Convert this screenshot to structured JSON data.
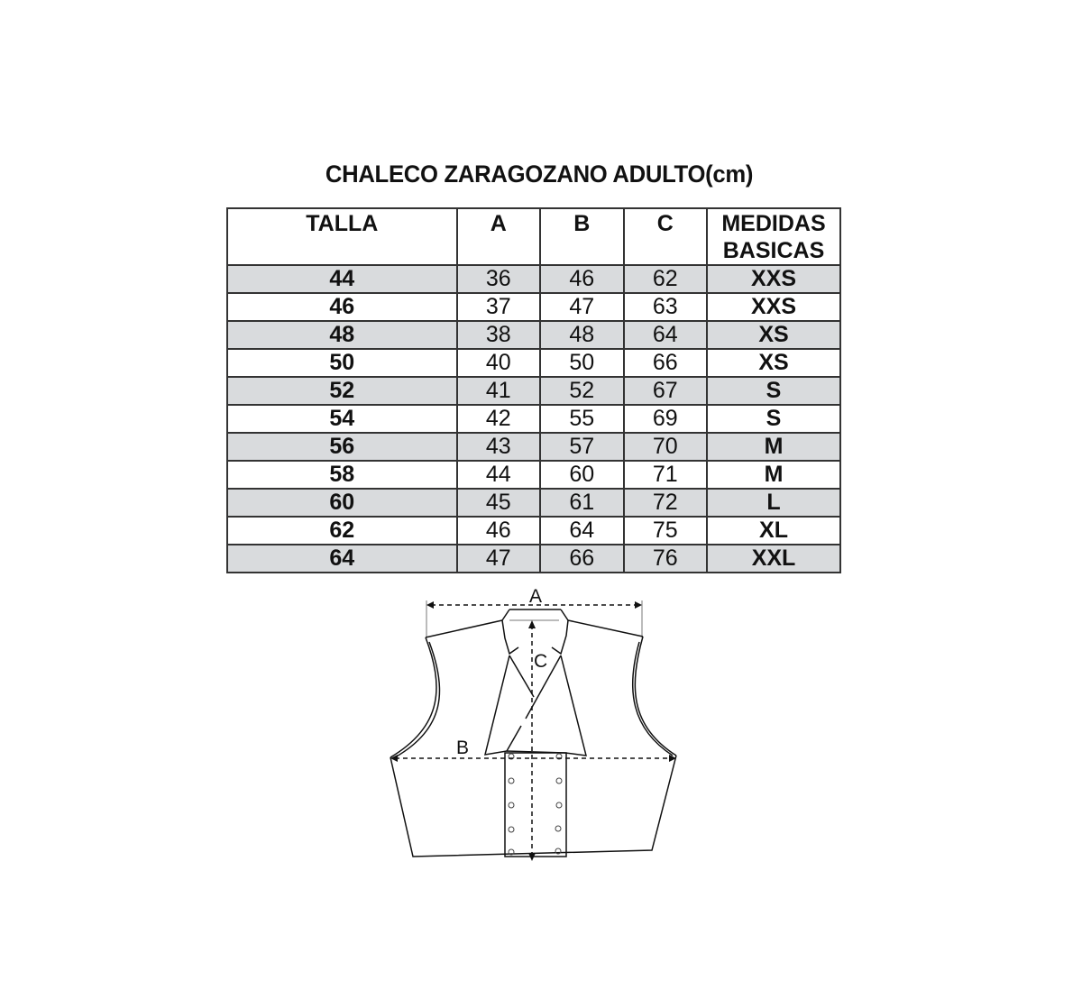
{
  "title": "CHALECO ZARAGOZANO ADULTO(cm)",
  "table": {
    "headers": [
      "TALLA",
      "A",
      "B",
      "C",
      "MEDIDAS BASICAS"
    ],
    "rows": [
      [
        "44",
        "36",
        "46",
        "62",
        "XXS"
      ],
      [
        "46",
        "37",
        "47",
        "63",
        "XXS"
      ],
      [
        "48",
        "38",
        "48",
        "64",
        "XS"
      ],
      [
        "50",
        "40",
        "50",
        "66",
        "XS"
      ],
      [
        "52",
        "41",
        "52",
        "67",
        "S"
      ],
      [
        "54",
        "42",
        "55",
        "69",
        "S"
      ],
      [
        "56",
        "43",
        "57",
        "70",
        "M"
      ],
      [
        "58",
        "44",
        "60",
        "71",
        "M"
      ],
      [
        "60",
        "45",
        "61",
        "72",
        "L"
      ],
      [
        "62",
        "46",
        "64",
        "75",
        "XL"
      ],
      [
        "64",
        "47",
        "66",
        "76",
        "XXL"
      ]
    ],
    "shade_color": "#d9dbdd"
  },
  "diagram": {
    "labels": {
      "a": "A",
      "b": "B",
      "c": "C"
    }
  }
}
